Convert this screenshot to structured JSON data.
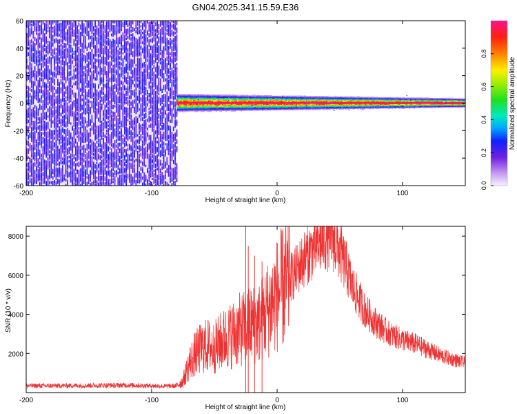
{
  "title": "GN04.2025.341.15.59.E36",
  "chart_data": [
    {
      "type": "heatmap",
      "xlabel": "Height of straight line (km)",
      "ylabel": "Frequency (Hz)",
      "xlim": [
        -200,
        150
      ],
      "ylim": [
        -60,
        60
      ],
      "xticks": [
        -200,
        -100,
        0,
        100
      ],
      "yticks": [
        -60,
        -40,
        -20,
        0,
        20,
        40,
        60
      ],
      "colorbar": {
        "label": "Normalized spectral amplitude",
        "range": [
          0,
          1
        ],
        "ticks": [
          0.0,
          0.2,
          0.4,
          0.6,
          0.8
        ]
      },
      "noise_region": {
        "x_from": -200,
        "x_to": -80,
        "freq_from": -60,
        "freq_to": 60,
        "amplitude": 0.25
      },
      "signal_band": {
        "x_from": -80,
        "x_to": 150,
        "freq_center": 0,
        "amplitude_peak": 1.0,
        "width_hz": [
          -8,
          8
        ]
      }
    },
    {
      "type": "line",
      "xlabel": "Height of straight line (km)",
      "ylabel": "SNR (10 * v/v)",
      "xlim": [
        -200,
        150
      ],
      "ylim": [
        0,
        8500
      ],
      "xticks": [
        -200,
        -100,
        0,
        100
      ],
      "yticks": [
        2000,
        4000,
        6000,
        8000
      ],
      "series": [
        {
          "name": "SNR",
          "color": "#ee3333",
          "x": [
            -200,
            -180,
            -160,
            -140,
            -120,
            -100,
            -90,
            -80,
            -75,
            -70,
            -65,
            -60,
            -55,
            -50,
            -45,
            -40,
            -35,
            -30,
            -25,
            -20,
            -15,
            -10,
            -5,
            0,
            5,
            10,
            15,
            20,
            25,
            30,
            35,
            40,
            45,
            50,
            55,
            60,
            70,
            80,
            90,
            100,
            110,
            120,
            130,
            140,
            150
          ],
          "y": [
            350,
            350,
            360,
            370,
            380,
            350,
            330,
            350,
            600,
            1500,
            2000,
            2300,
            2400,
            2300,
            2600,
            2800,
            3000,
            3200,
            3300,
            3500,
            3500,
            4000,
            4500,
            5000,
            5400,
            5800,
            6200,
            6700,
            7100,
            7400,
            7700,
            7900,
            7800,
            7200,
            6400,
            5400,
            4200,
            3500,
            3000,
            2700,
            2500,
            2200,
            1900,
            1700,
            1500
          ]
        }
      ],
      "spikes": [
        {
          "x": -25,
          "y": 8500
        },
        {
          "x": -23,
          "y": 7500
        },
        {
          "x": -18,
          "y": 7000
        },
        {
          "x": -12,
          "y": 6700
        }
      ],
      "noise_amplitude": 0.22
    }
  ]
}
